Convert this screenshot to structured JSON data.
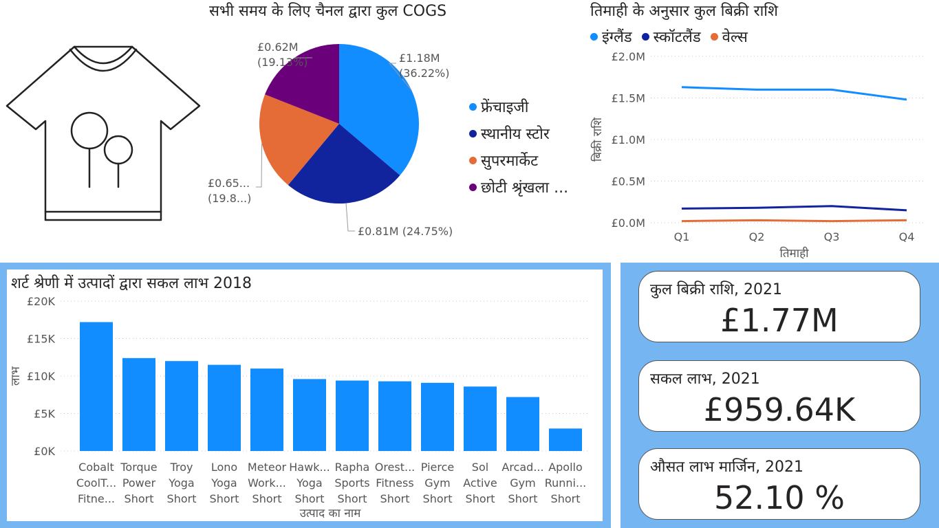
{
  "chart_data": [
    {
      "type": "pie",
      "title": "सभी समय के लिए चैनल द्वारा कुल COGS",
      "legend_position": "right",
      "series": [
        {
          "name": "फ्रेंचाइजी",
          "value": 1.18,
          "label": "£1.18M",
          "percent_label": "(36.22%)",
          "color": "#118dff"
        },
        {
          "name": "स्थानीय स्टोर",
          "value": 0.81,
          "label": "£0.81M (24.75%)",
          "percent_label": "",
          "color": "#12239e"
        },
        {
          "name": "सुपरमार्केट",
          "value": 0.65,
          "label": "£0.65...",
          "percent_label": "(19.8...)",
          "color": "#e66c37"
        },
        {
          "name": "छोटी श्रृंखला ...",
          "value": 0.62,
          "label": "£0.62M",
          "percent_label": "(19.13%)",
          "color": "#6b007b"
        }
      ]
    },
    {
      "type": "line",
      "title": "तिमाही के अनुसार कुल बिक्री राशि",
      "xlabel": "तिमाही",
      "ylabel": "बिक्री राशि",
      "categories": [
        "Q1",
        "Q2",
        "Q3",
        "Q4"
      ],
      "ylim": [
        0,
        2.0
      ],
      "yticks": [
        "£0.0M",
        "£0.5M",
        "£1.0M",
        "£1.5M",
        "£2.0M"
      ],
      "grid": true,
      "legend_position": "top-left",
      "series": [
        {
          "name": "इंग्लैंड",
          "color": "#118dff",
          "values": [
            1.63,
            1.6,
            1.6,
            1.48
          ]
        },
        {
          "name": "स्कॉटलैंड",
          "color": "#12239e",
          "values": [
            0.17,
            0.18,
            0.2,
            0.15
          ]
        },
        {
          "name": "वेल्स",
          "color": "#e66c37",
          "values": [
            0.02,
            0.03,
            0.02,
            0.03
          ]
        }
      ]
    },
    {
      "type": "bar",
      "title": "शर्ट श्रेणी में उत्पादों द्वारा सकल लाभ 2018",
      "xlabel": "उत्पाद का नाम",
      "ylabel": "लाभ",
      "ylim": [
        0,
        20000
      ],
      "yticks": [
        "£0K",
        "£5K",
        "£10K",
        "£15K",
        "£20K"
      ],
      "grid": true,
      "color": "#118dff",
      "categories": [
        [
          "Cobalt",
          "CoolT...",
          "Fitne..."
        ],
        [
          "Torque",
          "Power",
          "Short"
        ],
        [
          "Troy",
          "Yoga",
          "Short"
        ],
        [
          "Lono",
          "Yoga",
          "Short"
        ],
        [
          "Meteor",
          "Work...",
          "Short"
        ],
        [
          "Hawk...",
          "Yoga",
          "Short"
        ],
        [
          "Rapha",
          "Sports",
          "Short"
        ],
        [
          "Orest...",
          "Fitness",
          "Short"
        ],
        [
          "Pierce",
          "Gym",
          "Short"
        ],
        [
          "Sol",
          "Active",
          "Short"
        ],
        [
          "Arcad...",
          "Gym",
          "Short"
        ],
        [
          "Apollo",
          "Runni...",
          "Short"
        ]
      ],
      "values": [
        17200,
        12400,
        12000,
        11500,
        11000,
        9600,
        9400,
        9300,
        9100,
        8600,
        7200,
        3000
      ]
    }
  ],
  "kpis": [
    {
      "label": "कुल बिक्री राशि, 2021",
      "value": "£1.77M"
    },
    {
      "label": "सकल लाभ, 2021",
      "value": "£959.64K"
    },
    {
      "label": "औसत लाभ मार्जिन, 2021",
      "value": "52.10 %"
    }
  ],
  "logo_icon": "tshirt-icon"
}
